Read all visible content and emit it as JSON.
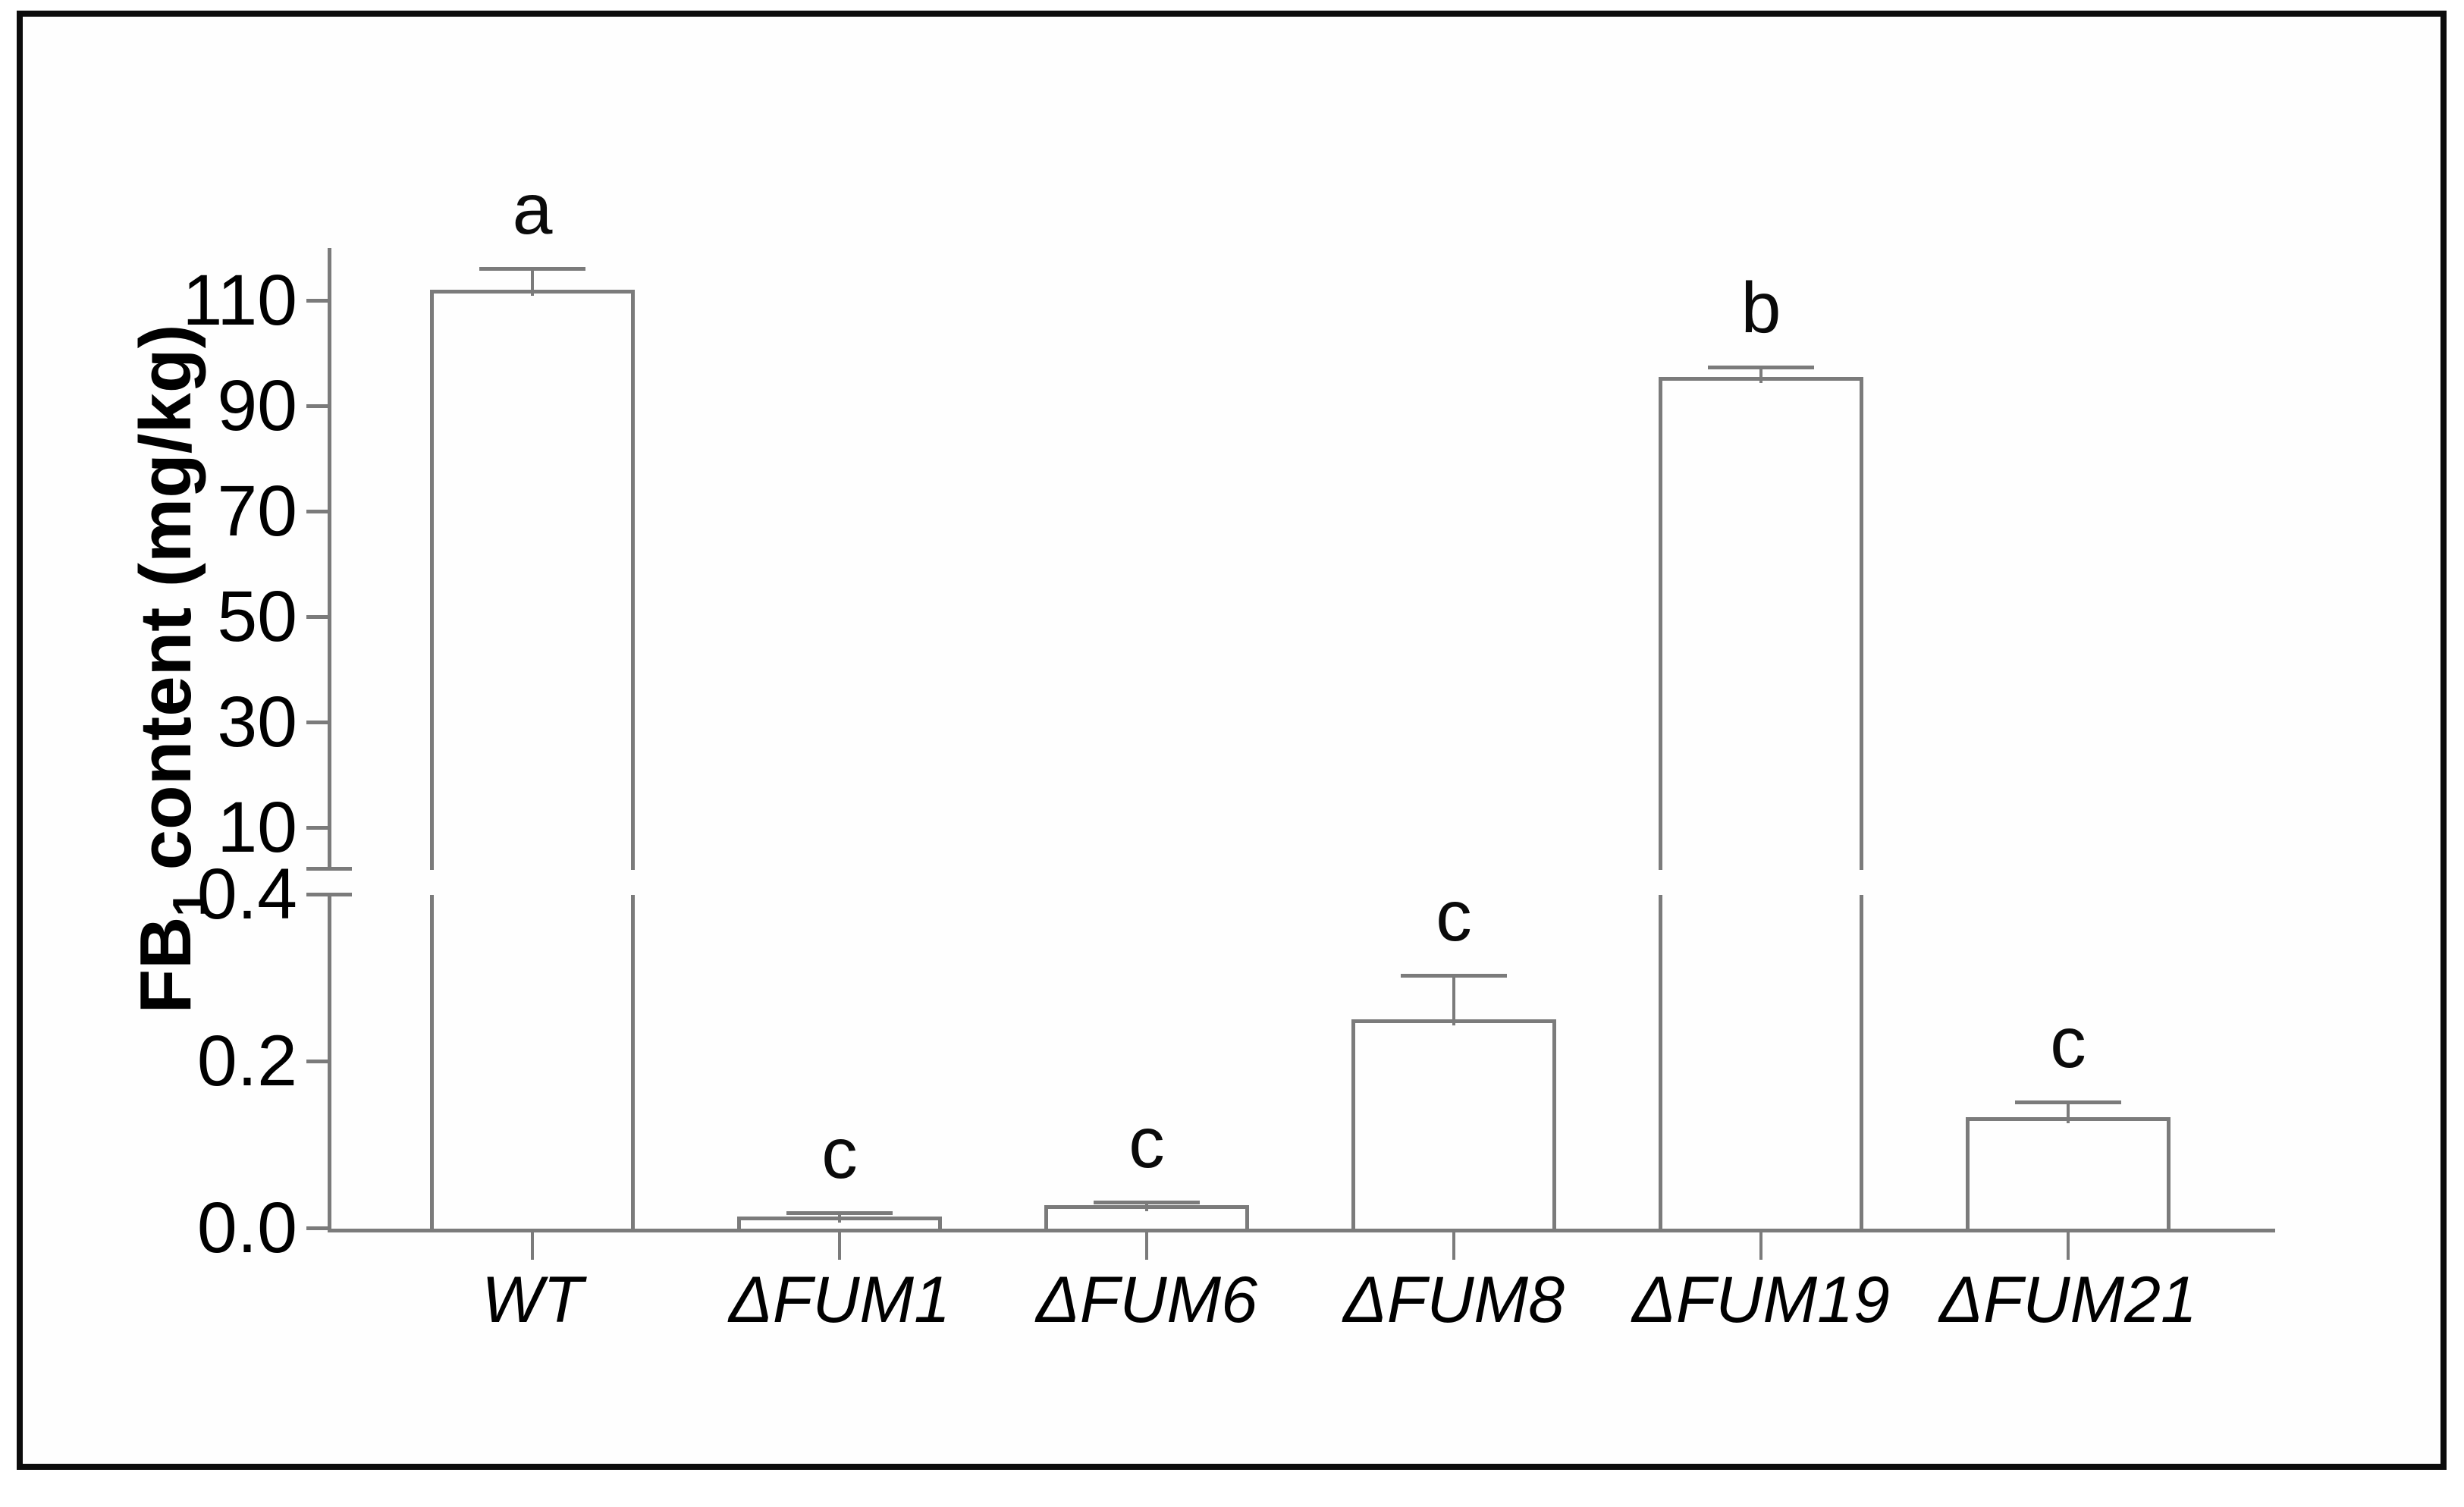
{
  "figure": {
    "background": "#ffffff",
    "frame_color": "#0c0c0c",
    "line_color": "#7b7b7b",
    "bar_fill": "#fefefe",
    "text_color": "#000000"
  },
  "chart_data": {
    "type": "bar",
    "title": "",
    "ylabel_prefix": "FB",
    "ylabel_sub": "1",
    "ylabel_suffix": " content (mg/kg)",
    "xlabel": "",
    "categories": [
      "WT",
      "ΔFUM1",
      "ΔFUM6",
      "ΔFUM8",
      "ΔFUM19",
      "ΔFUM21"
    ],
    "values": [
      112,
      0.014,
      0.027,
      0.25,
      95.5,
      0.133
    ],
    "errors": [
      4,
      0.004,
      0.004,
      0.053,
      1.8,
      0.018
    ],
    "sig_letters": [
      "a",
      "c",
      "c",
      "c",
      "b",
      "c"
    ],
    "upper_ticks": [
      110,
      90,
      70,
      50,
      30,
      10
    ],
    "lower_ticks": [
      {
        "label": "0.4",
        "value": 0.4
      },
      {
        "label": "0.2",
        "value": 0.2
      },
      {
        "label": "0.0",
        "value": 0.0
      }
    ],
    "axis_break": {
      "lower_segment_range": [
        0.0,
        0.4
      ],
      "upper_segment_range": [
        2,
        120
      ]
    },
    "grid": false,
    "legend": false,
    "bar_outline_color": "#7b7b7b",
    "bar_fill_color": "#ffffff",
    "error_bar_style": "cap-above-bar"
  }
}
